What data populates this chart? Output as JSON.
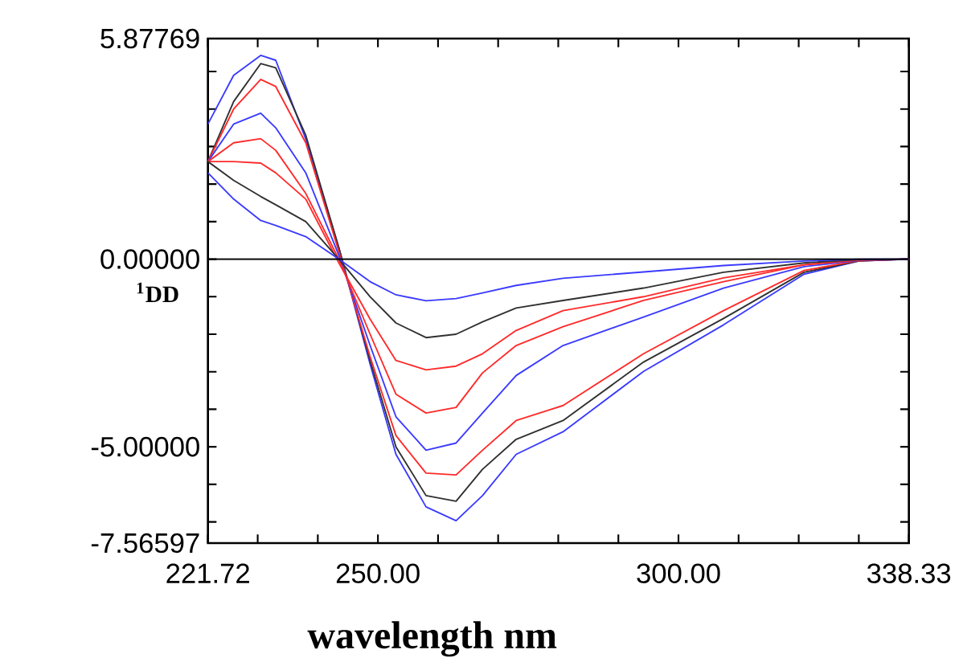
{
  "chart_data": {
    "type": "line",
    "xlabel": "wavelength nm",
    "ylabel": "$^{1}$DD",
    "x": [
      221.72,
      226,
      230.5,
      233,
      238,
      243.5,
      248.7,
      253,
      258,
      263,
      267.4,
      273,
      280.8,
      294.2,
      307.5,
      320.9,
      330,
      338.33
    ],
    "series": [
      {
        "color": "#3a3aff",
        "values": [
          3.6,
          4.9,
          5.43,
          5.3,
          3.2,
          0.3,
          -2.8,
          -5.2,
          -6.6,
          -6.97,
          -6.3,
          -5.2,
          -4.6,
          -2.99,
          -1.75,
          -0.4,
          -0.05,
          0
        ]
      },
      {
        "color": "#303030",
        "values": [
          2.6,
          4.2,
          5.21,
          5.1,
          3.3,
          0.3,
          -2.7,
          -5.0,
          -6.3,
          -6.45,
          -5.6,
          -4.8,
          -4.3,
          -2.74,
          -1.58,
          -0.35,
          -0.05,
          0
        ]
      },
      {
        "color": "#ff2a2a",
        "values": [
          2.6,
          4.0,
          4.79,
          4.6,
          3.1,
          0.2,
          -2.6,
          -4.7,
          -5.7,
          -5.75,
          -5.09,
          -4.3,
          -3.9,
          -2.52,
          -1.37,
          -0.3,
          -0.04,
          0
        ]
      },
      {
        "color": "#3a3aff",
        "values": [
          2.6,
          3.6,
          3.89,
          3.5,
          2.3,
          0.1,
          -2.3,
          -4.2,
          -5.09,
          -4.9,
          -4.1,
          -3.1,
          -2.3,
          -1.54,
          -0.77,
          -0.2,
          -0.03,
          0
        ]
      },
      {
        "color": "#ff2a2a",
        "values": [
          2.6,
          3.1,
          3.21,
          2.9,
          1.75,
          0.0,
          -2.0,
          -3.6,
          -4.1,
          -3.95,
          -3.03,
          -2.3,
          -1.8,
          -1.1,
          -0.6,
          -0.15,
          -0.02,
          0
        ]
      },
      {
        "color": "#ff2a2a",
        "values": [
          2.6,
          2.6,
          2.56,
          2.3,
          1.6,
          -0.1,
          -1.6,
          -2.7,
          -2.95,
          -2.85,
          -2.52,
          -1.9,
          -1.37,
          -1.0,
          -0.5,
          -0.15,
          -0.02,
          0
        ]
      },
      {
        "color": "#303030",
        "values": [
          2.6,
          2.1,
          1.67,
          1.45,
          1.0,
          0.0,
          -1.0,
          -1.7,
          -2.09,
          -2.0,
          -1.67,
          -1.3,
          -1.1,
          -0.77,
          -0.35,
          -0.1,
          -0.01,
          0
        ]
      },
      {
        "color": "#3a3aff",
        "values": [
          2.3,
          1.6,
          1.03,
          0.9,
          0.6,
          0.0,
          -0.6,
          -0.95,
          -1.11,
          -1.05,
          -0.9,
          -0.7,
          -0.51,
          -0.34,
          -0.17,
          -0.05,
          0,
          0
        ]
      }
    ],
    "xlim": [
      221.72,
      338.33
    ],
    "ylim": [
      -7.56597,
      5.87769
    ],
    "xticks": [
      {
        "value": 221.72,
        "label": "221.72"
      },
      {
        "value": 230,
        "label": null
      },
      {
        "value": 240,
        "label": null
      },
      {
        "value": 250,
        "label": "250.00"
      },
      {
        "value": 260,
        "label": null
      },
      {
        "value": 270,
        "label": null
      },
      {
        "value": 280,
        "label": null
      },
      {
        "value": 290,
        "label": null
      },
      {
        "value": 300,
        "label": "300.00"
      },
      {
        "value": 310,
        "label": null
      },
      {
        "value": 320,
        "label": null
      },
      {
        "value": 330,
        "label": null
      },
      {
        "value": 338.33,
        "label": "338.33"
      }
    ],
    "yticks": [
      {
        "value": -7.56597,
        "label": "-7.56597"
      },
      {
        "value": -7,
        "label": null
      },
      {
        "value": -6,
        "label": null
      },
      {
        "value": -5,
        "label": "-5.00000"
      },
      {
        "value": -4,
        "label": null
      },
      {
        "value": -3,
        "label": null
      },
      {
        "value": -2,
        "label": null
      },
      {
        "value": -1,
        "label": null
      },
      {
        "value": 0,
        "label": "0.00000"
      },
      {
        "value": 1,
        "label": null
      },
      {
        "value": 2,
        "label": null
      },
      {
        "value": 3,
        "label": null
      },
      {
        "value": 4,
        "label": null
      },
      {
        "value": 5,
        "label": null
      },
      {
        "value": 5.87769,
        "label": "5.87769"
      }
    ],
    "ref_lines": [
      {
        "axis": "y",
        "value": 0,
        "color": "#000000"
      }
    ],
    "marker": "none",
    "line_style": "solid"
  }
}
